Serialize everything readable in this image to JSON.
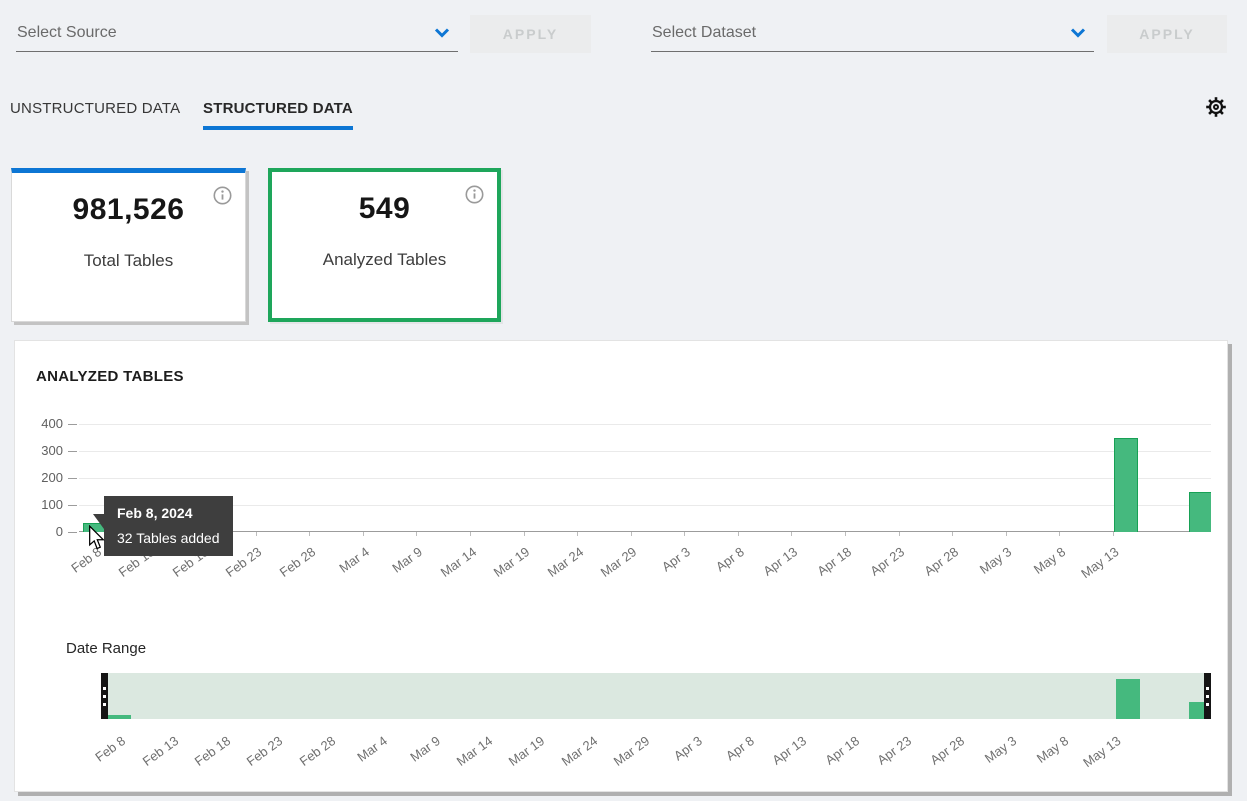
{
  "colors": {
    "accent_blue": "#0d76d4",
    "accent_green": "#1ea65b",
    "bar_fill": "#45b97e",
    "bar_stroke": "#17a155",
    "slider_track": "#dbe8e0",
    "tooltip_bg": "#3e3e3e",
    "page_bg": "#eff1f4"
  },
  "filters": {
    "source": {
      "placeholder": "Select Source",
      "apply_label": "APPLY"
    },
    "dataset": {
      "placeholder": "Select Dataset",
      "apply_label": "APPLY"
    }
  },
  "tabs": [
    {
      "label": "UNSTRUCTURED DATA",
      "active": false
    },
    {
      "label": "STRUCTURED DATA",
      "active": true
    }
  ],
  "cards": [
    {
      "value": "981,526",
      "label": "Total Tables"
    },
    {
      "value": "549",
      "label": "Analyzed Tables"
    }
  ],
  "chart_data": {
    "type": "bar",
    "title": "ANALYZED TABLES",
    "xlabel": "",
    "ylabel": "",
    "ylim": [
      0,
      400
    ],
    "y_ticks": [
      0,
      100,
      200,
      300,
      400
    ],
    "grid": true,
    "legend": false,
    "x_tick_labels": [
      "Feb 8",
      "Feb 13",
      "Feb 18",
      "Feb 23",
      "Feb 28",
      "Mar 4",
      "Mar 9",
      "Mar 14",
      "Mar 19",
      "Mar 24",
      "Mar 29",
      "Apr 3",
      "Apr 8",
      "Apr 13",
      "Apr 18",
      "Apr 23",
      "Apr 28",
      "May 3",
      "May 8",
      "May 13"
    ],
    "bars": [
      {
        "label": "Feb 8, 2024",
        "value": 32,
        "x_frac": 0.014
      },
      {
        "label": "May 11, 2024 (approx.)",
        "value": 350,
        "x_frac": 0.925
      },
      {
        "label": "May 16, 2024 (approx.)",
        "value": 150,
        "x_frac": 0.991
      }
    ]
  },
  "tooltip": {
    "title": "Feb 8, 2024",
    "body": "32 Tables added"
  },
  "date_range": {
    "label": "Date Range",
    "x_tick_labels": [
      "Feb 8",
      "Feb 13",
      "Feb 18",
      "Feb 23",
      "Feb 28",
      "Mar 4",
      "Mar 9",
      "Mar 14",
      "Mar 19",
      "Mar 24",
      "Mar 29",
      "Apr 3",
      "Apr 8",
      "Apr 13",
      "Apr 18",
      "Apr 23",
      "Apr 28",
      "May 3",
      "May 8",
      "May 13"
    ]
  }
}
